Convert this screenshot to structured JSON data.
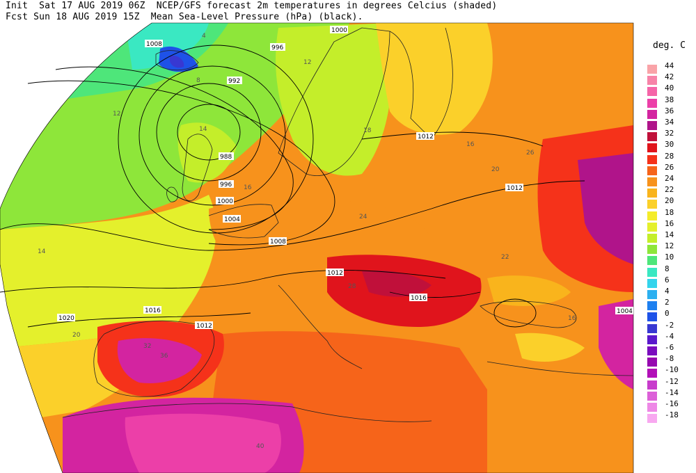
{
  "header": {
    "line1": "Init  Sat 17 AUG 2019 06Z  NCEP/GFS forecast 2m temperatures in degrees Celcius (shaded)",
    "line2": "Fcst Sun 18 AUG 2019 15Z  Mean Sea-Level Pressure (hPa) (black)."
  },
  "legend": {
    "title": "deg. C",
    "levels": [
      "44",
      "42",
      "40",
      "38",
      "36",
      "34",
      "32",
      "30",
      "28",
      "26",
      "24",
      "22",
      "20",
      "18",
      "16",
      "14",
      "12",
      "10",
      "8",
      "6",
      "4",
      "2",
      "0",
      "-2",
      "-4",
      "-6",
      "-8",
      "-10",
      "-12",
      "-14",
      "-16",
      "-18"
    ],
    "colors": [
      "#f9a3a8",
      "#f783a8",
      "#f565a8",
      "#ec3fa8",
      "#d324a0",
      "#b0148a",
      "#c0103a",
      "#e0141c",
      "#f5321a",
      "#f6641a",
      "#f7921c",
      "#f9b41c",
      "#fbd02a",
      "#f4ec2a",
      "#e4f02c",
      "#c4ee2a",
      "#8ee63a",
      "#4ee67a",
      "#3ae8c2",
      "#34d4ec",
      "#2cb0f0",
      "#1e80f0",
      "#1e52e8",
      "#3838d2",
      "#5a18cc",
      "#7a0cbe",
      "#9608b0",
      "#b210b8",
      "#c83ccc",
      "#dc60d8",
      "#ee88e6",
      "#f8a8f0"
    ]
  },
  "isobar_labels": [
    "1000",
    "996",
    "992",
    "988",
    "996",
    "1000",
    "1004",
    "1008",
    "1012",
    "1012",
    "1012",
    "1016",
    "1016",
    "1020",
    "1004",
    "1012",
    "1008"
  ],
  "temp_labels": [
    "4",
    "8",
    "12",
    "14",
    "16",
    "12",
    "16",
    "18",
    "20",
    "24",
    "28",
    "32",
    "36",
    "40",
    "26",
    "22",
    "20",
    "16",
    "14"
  ],
  "map": {
    "projection": "polar stereographic",
    "region": "Europe / North Africa"
  }
}
